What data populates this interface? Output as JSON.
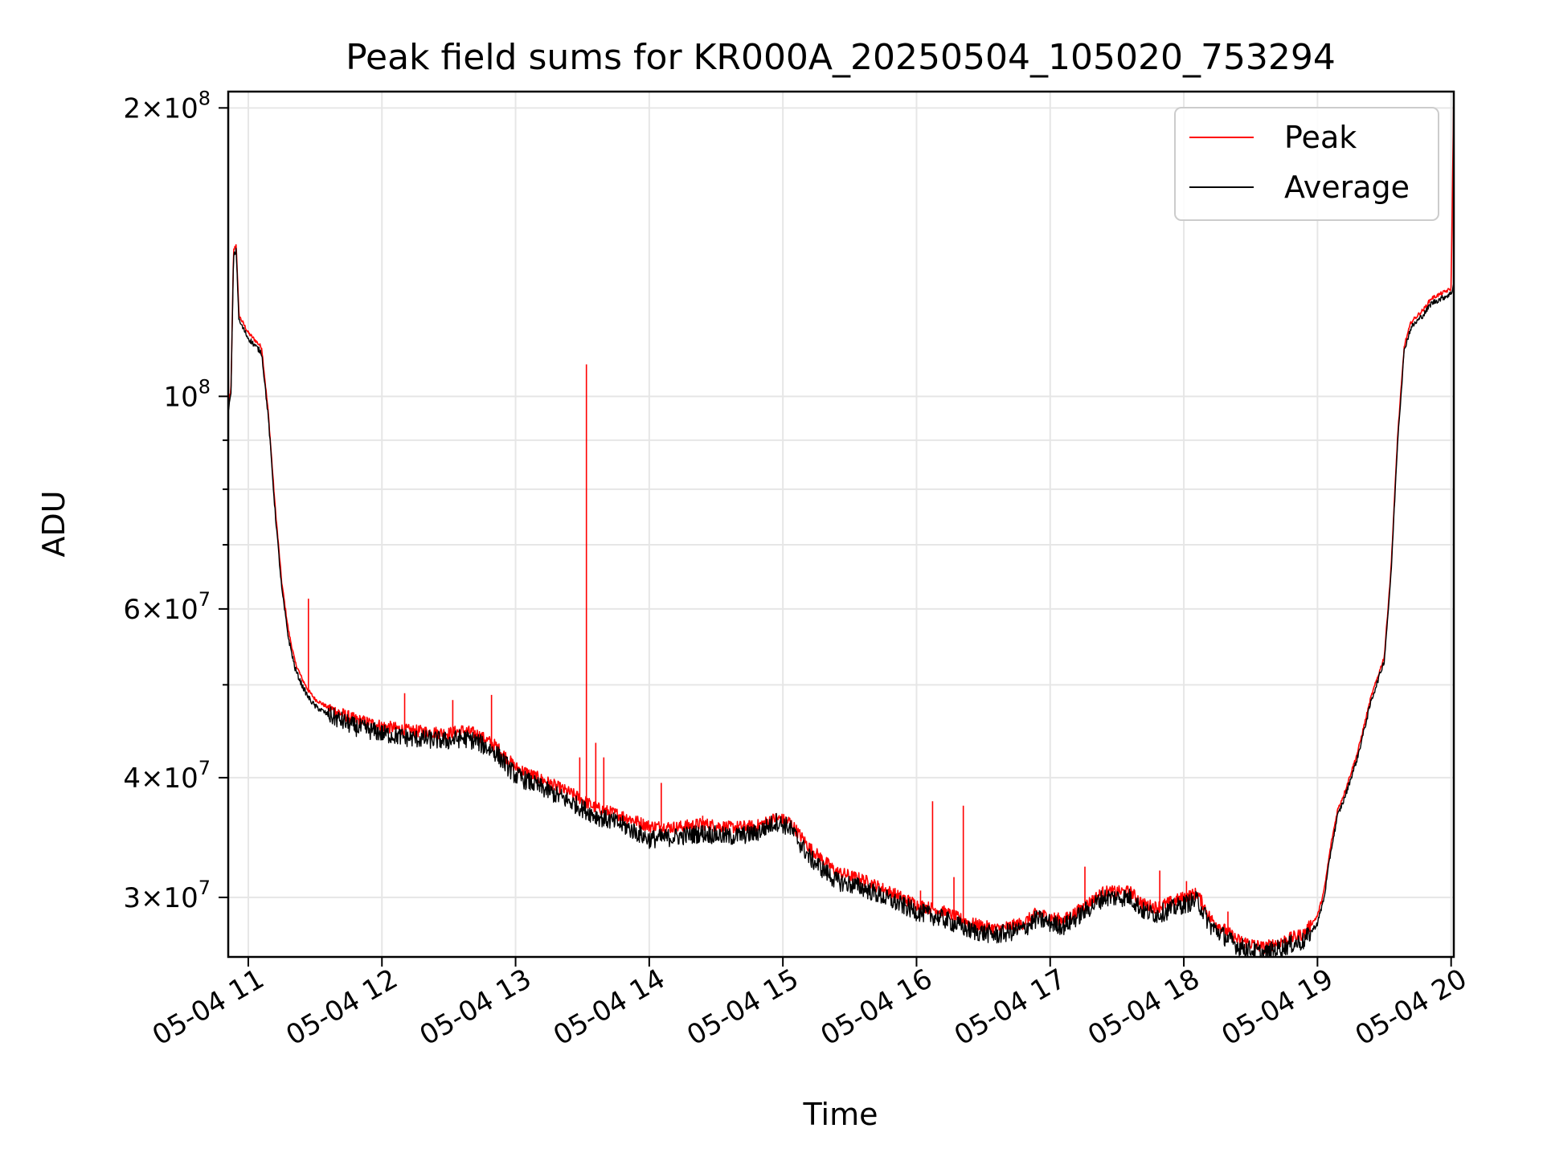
{
  "chart_data": {
    "type": "line",
    "title": "Peak field sums for KR000A_20250504_105020_753294",
    "xlabel": "Time",
    "ylabel": "ADU",
    "y_scale": "log",
    "x_range_hours": [
      10.85,
      20.02
    ],
    "ylim": [
      26000000,
      208000000
    ],
    "grid": true,
    "legend_position": "top-right",
    "x_ticks": [
      {
        "value": 11,
        "label": "05-04 11"
      },
      {
        "value": 12,
        "label": "05-04 12"
      },
      {
        "value": 13,
        "label": "05-04 13"
      },
      {
        "value": 14,
        "label": "05-04 14"
      },
      {
        "value": 15,
        "label": "05-04 15"
      },
      {
        "value": 16,
        "label": "05-04 16"
      },
      {
        "value": 17,
        "label": "05-04 17"
      },
      {
        "value": 18,
        "label": "05-04 18"
      },
      {
        "value": 19,
        "label": "05-04 19"
      },
      {
        "value": 20,
        "label": "05-04 20"
      }
    ],
    "y_ticks": [
      {
        "value": 200000000,
        "mantissa": "2",
        "exp": "8"
      },
      {
        "value": 100000000,
        "mantissa": "",
        "exp": "8"
      },
      {
        "value": 60000000,
        "mantissa": "6",
        "exp": "7"
      },
      {
        "value": 40000000,
        "mantissa": "4",
        "exp": "7"
      },
      {
        "value": 30000000,
        "mantissa": "3",
        "exp": "7"
      }
    ],
    "y_minor_ticks": [
      50000000,
      70000000,
      80000000,
      90000000
    ],
    "series": [
      {
        "name": "Average",
        "color": "#000000",
        "x": [
          10.85,
          10.87,
          10.89,
          10.91,
          10.93,
          11.0,
          11.1,
          11.15,
          11.2,
          11.25,
          11.3,
          11.35,
          11.4,
          11.45,
          11.5,
          11.6,
          11.8,
          12.0,
          12.2,
          12.5,
          12.6,
          12.7,
          12.85,
          13.0,
          13.2,
          13.45,
          13.6,
          13.8,
          14.0,
          14.2,
          14.4,
          14.6,
          14.8,
          14.95,
          15.05,
          15.2,
          15.4,
          15.6,
          15.8,
          16.0,
          16.2,
          16.4,
          16.6,
          16.8,
          16.9,
          17.0,
          17.1,
          17.2,
          17.4,
          17.6,
          17.7,
          17.8,
          18.0,
          18.1,
          18.2,
          18.4,
          18.6,
          18.8,
          18.9,
          19.0,
          19.05,
          19.1,
          19.15,
          19.2,
          19.3,
          19.4,
          19.5,
          19.55,
          19.6,
          19.65,
          19.7,
          19.8,
          19.85,
          19.9,
          20.0,
          20.02
        ],
        "y": [
          97000000,
          100000000,
          140000000,
          142000000,
          120000000,
          115000000,
          111000000,
          95000000,
          76000000,
          63000000,
          56000000,
          52000000,
          50000000,
          48500000,
          47500000,
          46500000,
          45200000,
          44500000,
          44000000,
          43700000,
          44000000,
          43700000,
          42500000,
          40200000,
          39000000,
          37500000,
          36500000,
          35700000,
          34500000,
          34700000,
          35000000,
          34700000,
          35000000,
          36000000,
          35500000,
          33000000,
          31200000,
          30700000,
          29800000,
          29000000,
          28500000,
          27700000,
          27400000,
          27800000,
          28500000,
          28200000,
          28000000,
          28600000,
          30000000,
          30000000,
          29000000,
          28800000,
          29500000,
          29800000,
          28000000,
          26700000,
          26200000,
          26800000,
          27000000,
          28200000,
          30000000,
          33500000,
          36500000,
          38000000,
          42000000,
          48000000,
          53000000,
          65000000,
          90000000,
          112000000,
          118000000,
          122000000,
          125000000,
          126000000,
          128000000,
          131000000
        ]
      },
      {
        "name": "Peak",
        "color": "#ff0000",
        "x": [
          10.85,
          10.87,
          10.89,
          10.91,
          10.93,
          11.0,
          11.1,
          11.15,
          11.2,
          11.25,
          11.3,
          11.35,
          11.4,
          11.45,
          11.5,
          11.6,
          11.8,
          12.0,
          12.2,
          12.5,
          12.6,
          12.7,
          12.85,
          13.0,
          13.2,
          13.45,
          13.6,
          13.8,
          14.0,
          14.2,
          14.4,
          14.6,
          14.8,
          14.95,
          15.05,
          15.2,
          15.4,
          15.6,
          15.8,
          16.0,
          16.2,
          16.4,
          16.6,
          16.8,
          16.9,
          17.0,
          17.1,
          17.2,
          17.4,
          17.6,
          17.7,
          17.8,
          18.0,
          18.1,
          18.2,
          18.4,
          18.6,
          18.8,
          18.9,
          19.0,
          19.05,
          19.1,
          19.15,
          19.2,
          19.3,
          19.4,
          19.5,
          19.55,
          19.6,
          19.65,
          19.7,
          19.8,
          19.85,
          19.9,
          20.0,
          20.02
        ],
        "y": [
          98500000,
          101000000,
          142000000,
          144000000,
          121500000,
          116500000,
          112500000,
          96000000,
          77000000,
          64000000,
          57000000,
          52800000,
          50800000,
          49300000,
          48300000,
          47300000,
          46000000,
          45300000,
          44800000,
          44500000,
          44800000,
          44500000,
          43200000,
          41000000,
          39800000,
          38300000,
          37200000,
          36500000,
          35600000,
          35500000,
          35800000,
          35500000,
          35600000,
          36300000,
          36000000,
          33800000,
          31900000,
          31300000,
          30400000,
          29500000,
          29000000,
          28200000,
          27800000,
          28200000,
          28900000,
          28600000,
          28400000,
          29000000,
          30400000,
          30400000,
          29500000,
          29300000,
          30000000,
          30300000,
          28500000,
          27100000,
          26600000,
          27200000,
          27500000,
          28700000,
          30500000,
          34000000,
          37000000,
          38500000,
          42500000,
          48500000,
          53500000,
          66000000,
          91000000,
          113000000,
          119500000,
          123500000,
          126500000,
          127500000,
          129500000,
          208000000
        ]
      }
    ],
    "peak_spikes": [
      {
        "x": 11.45,
        "y": 61500000
      },
      {
        "x": 12.17,
        "y": 49000000
      },
      {
        "x": 12.53,
        "y": 48200000
      },
      {
        "x": 12.82,
        "y": 48800000
      },
      {
        "x": 13.48,
        "y": 42000000
      },
      {
        "x": 13.53,
        "y": 108000000
      },
      {
        "x": 13.6,
        "y": 43500000
      },
      {
        "x": 13.66,
        "y": 42000000
      },
      {
        "x": 14.09,
        "y": 39500000
      },
      {
        "x": 14.4,
        "y": 36500000
      },
      {
        "x": 16.03,
        "y": 30500000
      },
      {
        "x": 16.12,
        "y": 37800000
      },
      {
        "x": 16.28,
        "y": 31500000
      },
      {
        "x": 16.35,
        "y": 37400000
      },
      {
        "x": 17.26,
        "y": 32300000
      },
      {
        "x": 17.82,
        "y": 32000000
      },
      {
        "x": 18.02,
        "y": 31200000
      },
      {
        "x": 18.33,
        "y": 29000000
      },
      {
        "x": 19.05,
        "y": 30500000
      }
    ]
  },
  "legend": {
    "peak_label": "Peak",
    "average_label": "Average"
  }
}
